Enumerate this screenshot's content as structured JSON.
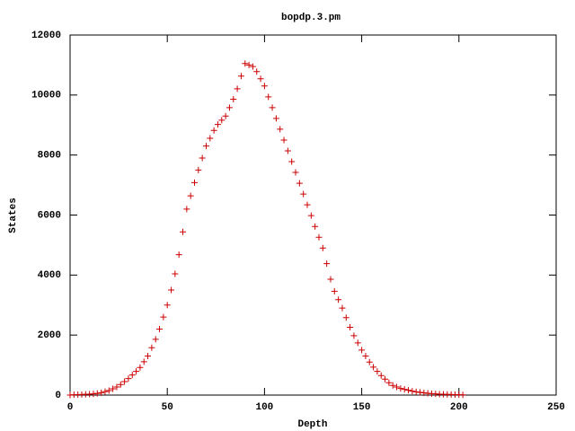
{
  "chart_data": {
    "type": "scatter",
    "title": "bopdp.3.pm",
    "xlabel": "Depth",
    "ylabel": "States",
    "xlim": [
      0,
      250
    ],
    "xticks": [
      0,
      50,
      100,
      150,
      200,
      250
    ],
    "ylim": [
      0,
      12000
    ],
    "yticks": [
      0,
      2000,
      4000,
      6000,
      8000,
      10000,
      12000
    ],
    "series": [
      {
        "color": "#cc0000",
        "x": [
          0,
          2,
          4,
          6,
          8,
          10,
          12,
          14,
          16,
          18,
          20,
          22,
          24,
          26,
          28,
          30,
          32,
          34,
          36,
          38,
          40,
          42,
          44,
          46,
          48,
          50,
          52,
          54,
          56,
          58,
          60,
          62,
          64,
          66,
          68,
          70,
          72,
          74,
          76,
          78,
          80,
          82,
          84,
          86,
          88,
          90,
          92,
          94,
          96,
          98,
          100,
          102,
          104,
          106,
          108,
          110,
          112,
          114,
          116,
          118,
          120,
          122,
          124,
          126,
          128,
          130,
          132,
          134,
          136,
          138,
          140,
          142,
          144,
          146,
          148,
          150,
          152,
          154,
          156,
          158,
          160,
          162,
          164,
          166,
          168,
          170,
          172,
          174,
          176,
          178,
          180,
          182,
          184,
          186,
          188,
          190,
          192,
          194,
          196,
          198,
          200,
          202
        ],
        "values": [
          0,
          10,
          15,
          20,
          25,
          30,
          40,
          55,
          80,
          115,
          150,
          210,
          270,
          350,
          450,
          550,
          670,
          790,
          920,
          1110,
          1300,
          1580,
          1860,
          2200,
          2600,
          3000,
          3500,
          4040,
          4680,
          5440,
          6200,
          6640,
          7080,
          7500,
          7900,
          8300,
          8560,
          8820,
          9020,
          9160,
          9300,
          9580,
          9860,
          10210,
          10630,
          11050,
          11000,
          10950,
          10780,
          10540,
          10300,
          9940,
          9580,
          9220,
          8860,
          8500,
          8140,
          7780,
          7420,
          7060,
          6700,
          6340,
          5980,
          5620,
          5260,
          4900,
          4380,
          3860,
          3460,
          3180,
          2900,
          2580,
          2260,
          1980,
          1740,
          1500,
          1300,
          1100,
          930,
          790,
          650,
          530,
          410,
          320,
          270,
          220,
          190,
          160,
          130,
          110,
          90,
          75,
          60,
          50,
          40,
          30,
          26,
          22,
          18,
          14,
          10,
          6
        ]
      }
    ]
  }
}
